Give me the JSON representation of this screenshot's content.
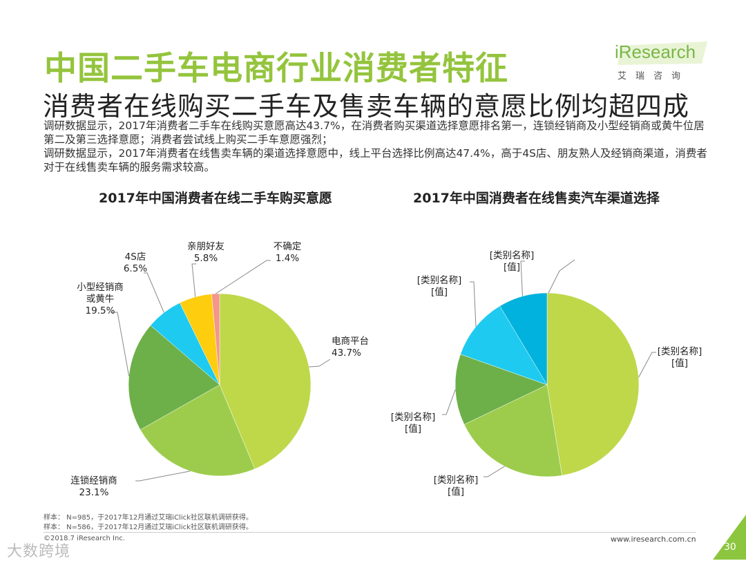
{
  "header": {
    "title": "中国二手车电商行业消费者特征",
    "subtitle": "消费者在线购买二手车及售卖车辆的意愿比例均超四成",
    "paragraphs": [
      "调研数据显示，2017年消费者二手车在线购买意愿高达43.7%，在消费者购买渠道选择意愿排名第一，连锁经销商及小型经销商或黄牛位居第二及第三选择意愿；消费者尝试线上购买二手车意愿强烈；",
      "调研数据显示，2017年消费者在线售卖车辆的渠道选择意愿中，线上平台选择比例高达47.4%，高于4S店、朋友熟人及经销商渠道，消费者对于在线售卖车辆的服务需求较高。"
    ]
  },
  "logo": {
    "word": "iResearch",
    "sub": "艾瑞咨询"
  },
  "colors": {
    "title_green": "#94c43d",
    "slice_light_green": "#bed84a",
    "slice_mid_green": "#9dcc4c",
    "slice_dark_green": "#6db04a",
    "slice_cyan": "#1ecaf0",
    "slice_yellow": "#fecd0d",
    "slice_pink": "#f4968a",
    "corner_accent": "#8cc63f"
  },
  "chart_data": [
    {
      "type": "pie",
      "title": "2017年中国消费者在线二手车购买意愿",
      "slices": [
        {
          "label": "电商平台",
          "value": 43.7,
          "value_text": "43.7%",
          "color": "#bed84a"
        },
        {
          "label": "连锁经销商",
          "value": 23.1,
          "value_text": "23.1%",
          "color": "#9dcc4c"
        },
        {
          "label": "小型经销商或黄牛",
          "value": 19.5,
          "value_text": "19.5%",
          "color": "#6db04a"
        },
        {
          "label": "4S店",
          "value": 6.5,
          "value_text": "6.5%",
          "color": "#1ecaf0"
        },
        {
          "label": "亲朋好友",
          "value": 5.8,
          "value_text": "5.8%",
          "color": "#fecd0d"
        },
        {
          "label": "不确定",
          "value": 1.4,
          "value_text": "1.4%",
          "color": "#f4968a"
        }
      ]
    },
    {
      "type": "pie",
      "title": "2017年中国消费者在线售卖汽车渠道选择",
      "slices": [
        {
          "label": "[类别名称]",
          "value": 47.4,
          "value_text": "[值]",
          "color": "#bed84a"
        },
        {
          "label": "[类别名称]",
          "value": 20.5,
          "value_text": "[值]",
          "color": "#9dcc4c"
        },
        {
          "label": "[类别名称]",
          "value": 12.5,
          "value_text": "[值]",
          "color": "#6db04a"
        },
        {
          "label": "[类别名称]",
          "value": 11.0,
          "value_text": "[值]",
          "color": "#1ecaf0"
        },
        {
          "label": "[类别名称]",
          "value": 8.6,
          "value_text": "[值]",
          "color": "#00b2dd"
        }
      ]
    }
  ],
  "footnotes": {
    "sample1": "样本： N=985，于2017年12月通过艾瑞iClick社区联机调研获得。",
    "sample2": "样本： N=586，于2017年12月通过艾瑞iClick社区联机调研获得。",
    "copyright": "©2018.7 iResearch Inc.",
    "website": "www.iresearch.com.cn",
    "page": "30",
    "watermark": "大数跨境"
  }
}
